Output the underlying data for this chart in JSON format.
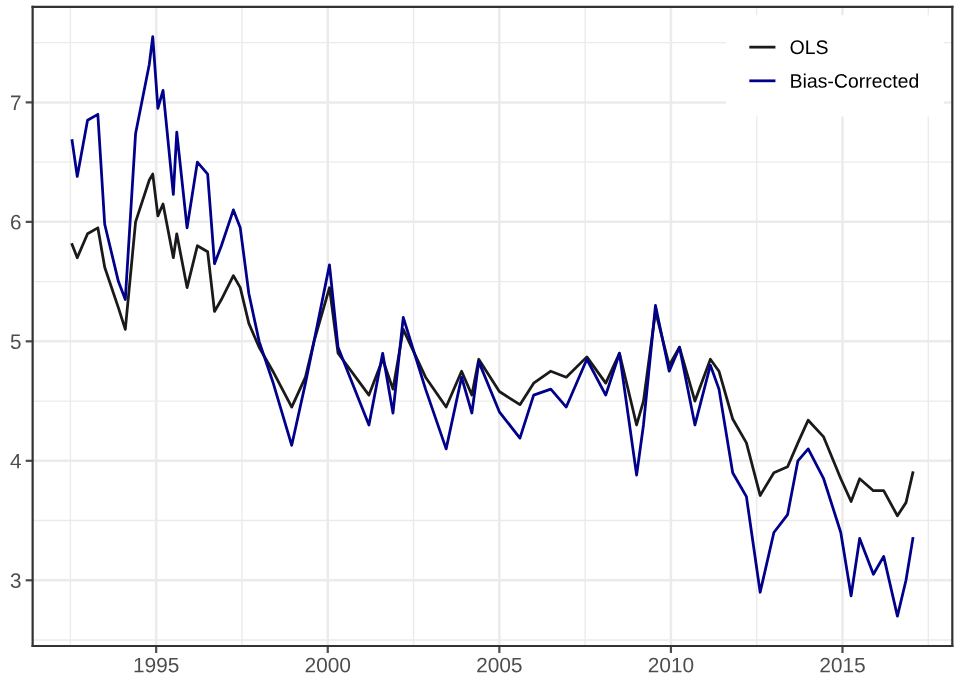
{
  "chart_data": {
    "type": "line",
    "x": [
      1992.55,
      1992.7,
      1993.0,
      1993.3,
      1993.5,
      1993.9,
      1994.1,
      1994.4,
      1994.8,
      1994.9,
      1995.05,
      1995.2,
      1995.5,
      1995.6,
      1995.9,
      1996.2,
      1996.5,
      1996.7,
      1996.9,
      1997.25,
      1997.45,
      1997.7,
      1998.0,
      1998.4,
      1998.95,
      1999.35,
      1999.6,
      2000.05,
      2000.3,
      2001.2,
      2001.6,
      2001.9,
      2002.2,
      2002.85,
      2003.45,
      2003.9,
      2004.2,
      2004.4,
      2005.0,
      2005.6,
      2006.0,
      2006.5,
      2006.95,
      2007.55,
      2008.1,
      2008.5,
      2009.0,
      2009.2,
      2009.55,
      2009.95,
      2010.25,
      2010.7,
      2011.15,
      2011.4,
      2011.8,
      2012.2,
      2012.6,
      2013.0,
      2013.4,
      2013.7,
      2014.0,
      2014.45,
      2014.95,
      2015.25,
      2015.5,
      2015.9,
      2016.2,
      2016.6,
      2016.85,
      2017.05
    ],
    "series": [
      {
        "name": "OLS",
        "color": "#1a1a1a",
        "values": [
          5.81,
          5.7,
          5.9,
          5.95,
          5.62,
          5.28,
          5.1,
          6.0,
          6.35,
          6.4,
          6.05,
          6.15,
          5.7,
          5.9,
          5.45,
          5.8,
          5.75,
          5.25,
          5.35,
          5.55,
          5.45,
          5.15,
          4.95,
          4.75,
          4.45,
          4.7,
          5.0,
          5.45,
          4.9,
          4.55,
          4.85,
          4.6,
          5.1,
          4.7,
          4.45,
          4.75,
          4.55,
          4.85,
          4.58,
          4.47,
          4.65,
          4.75,
          4.7,
          4.87,
          4.65,
          4.9,
          4.3,
          4.5,
          5.25,
          4.8,
          4.95,
          4.5,
          4.85,
          4.75,
          4.35,
          4.15,
          3.71,
          3.9,
          3.95,
          4.15,
          4.34,
          4.2,
          3.85,
          3.66,
          3.85,
          3.75,
          3.75,
          3.54,
          3.65,
          3.9
        ]
      },
      {
        "name": "Bias-Corrected",
        "color": "#00008b",
        "values": [
          6.68,
          6.38,
          6.85,
          6.9,
          5.98,
          5.5,
          5.35,
          6.74,
          7.32,
          7.55,
          6.95,
          7.1,
          6.23,
          6.75,
          5.95,
          6.5,
          6.4,
          5.65,
          5.8,
          6.1,
          5.95,
          5.4,
          5.0,
          4.66,
          4.13,
          4.65,
          5.0,
          5.64,
          4.95,
          4.3,
          4.9,
          4.4,
          5.2,
          4.6,
          4.1,
          4.7,
          4.4,
          4.83,
          4.41,
          4.19,
          4.55,
          4.6,
          4.45,
          4.85,
          4.55,
          4.9,
          3.88,
          4.3,
          5.3,
          4.75,
          4.95,
          4.3,
          4.8,
          4.6,
          3.9,
          3.7,
          2.9,
          3.4,
          3.55,
          4.0,
          4.1,
          3.85,
          3.4,
          2.87,
          3.35,
          3.05,
          3.2,
          2.7,
          3.0,
          3.35
        ]
      }
    ],
    "xlim": [
      1991.4,
      2018.2
    ],
    "xticks": [
      1995,
      2000,
      2005,
      2010,
      2015
    ],
    "ylim": [
      2.45,
      7.8
    ],
    "yticks": [
      3,
      4,
      5,
      6,
      7
    ],
    "grid": true,
    "legend": "top right"
  }
}
